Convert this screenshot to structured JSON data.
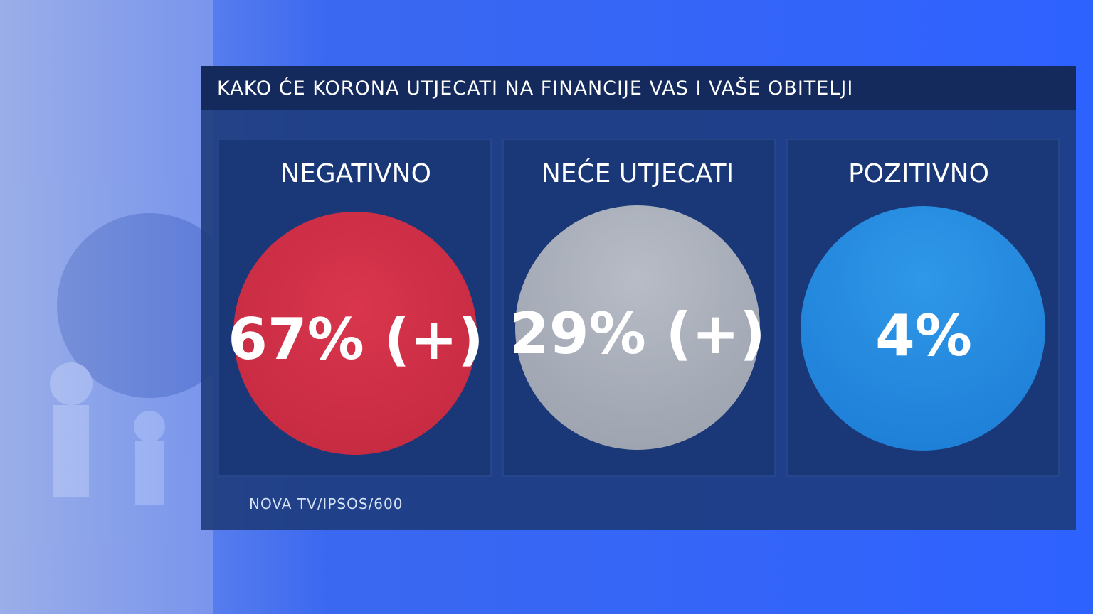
{
  "title": "KAKO ĆE KORONA UTJECATI NA FINANCIJE VAS I VAŠE OBITELJI",
  "panels": [
    {
      "label": "NEGATIVNO",
      "value": "67% (+)"
    },
    {
      "label": "NEĆE UTJECATI",
      "value": "29% (+)"
    },
    {
      "label": "POZITIVNO",
      "value": "4%"
    }
  ],
  "source": "NOVA TV/IPSOS/600"
}
